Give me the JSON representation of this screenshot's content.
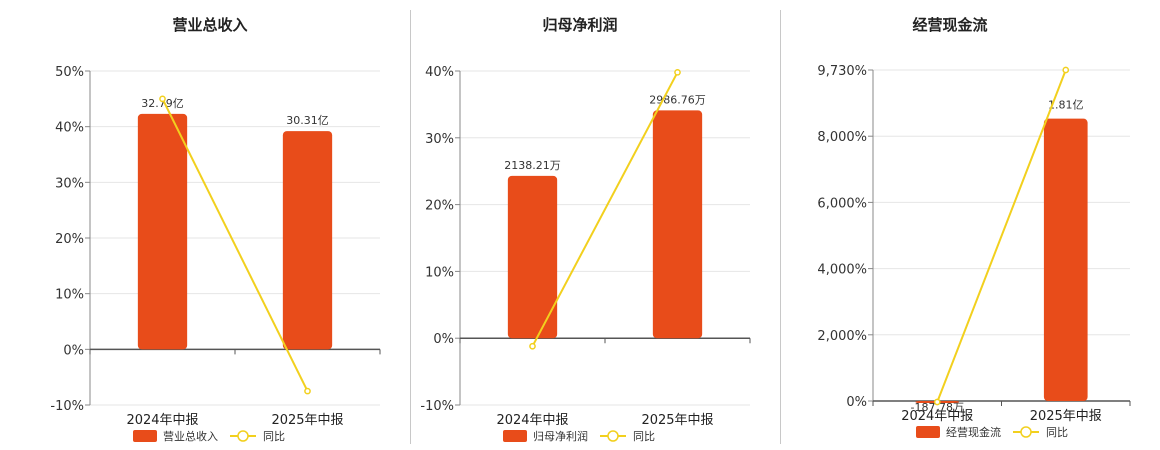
{
  "chart_data": [
    {
      "type": "bar",
      "title": "营业总收入",
      "categories": [
        "2024年中报",
        "2025年中报"
      ],
      "series": [
        {
          "name": "营业总收入",
          "kind": "bar",
          "values": [
            42.3,
            39.2
          ],
          "labels": [
            "32.79亿",
            "30.31亿"
          ],
          "color": "#e84c1a"
        },
        {
          "name": "同比",
          "kind": "line",
          "values": [
            45.0,
            -7.5
          ],
          "color": "#f2d01e"
        }
      ],
      "yticks": [
        "50%",
        "40%",
        "30%",
        "20%",
        "10%",
        "0%",
        "-10%"
      ],
      "ylim": [
        -10,
        50
      ]
    },
    {
      "type": "bar",
      "title": "归母净利润",
      "categories": [
        "2024年中报",
        "2025年中报"
      ],
      "series": [
        {
          "name": "归母净利润",
          "kind": "bar",
          "values": [
            24.3,
            34.1
          ],
          "labels": [
            "2138.21万",
            "2986.76万"
          ],
          "color": "#e84c1a"
        },
        {
          "name": "同比",
          "kind": "line",
          "values": [
            -1.2,
            39.8
          ],
          "color": "#f2d01e"
        }
      ],
      "yticks": [
        "40%",
        "30%",
        "20%",
        "10%",
        "0%",
        "-10%"
      ],
      "ylim": [
        -10,
        40
      ]
    },
    {
      "type": "bar",
      "title": "经营现金流",
      "categories": [
        "2024年中报",
        "2025年中报"
      ],
      "series": [
        {
          "name": "经营现金流",
          "kind": "bar",
          "values": [
            -25,
            8300
          ],
          "labels": [
            "-187.78万",
            "1.81亿"
          ],
          "color": "#e84c1a"
        },
        {
          "name": "同比",
          "kind": "line",
          "values": [
            -30,
            9730
          ],
          "color": "#f2d01e"
        }
      ],
      "yticks": [
        "9,730%",
        "8,000%",
        "6,000%",
        "4,000%",
        "2,000%",
        "0%"
      ],
      "ylim": [
        0,
        9730
      ]
    }
  ]
}
